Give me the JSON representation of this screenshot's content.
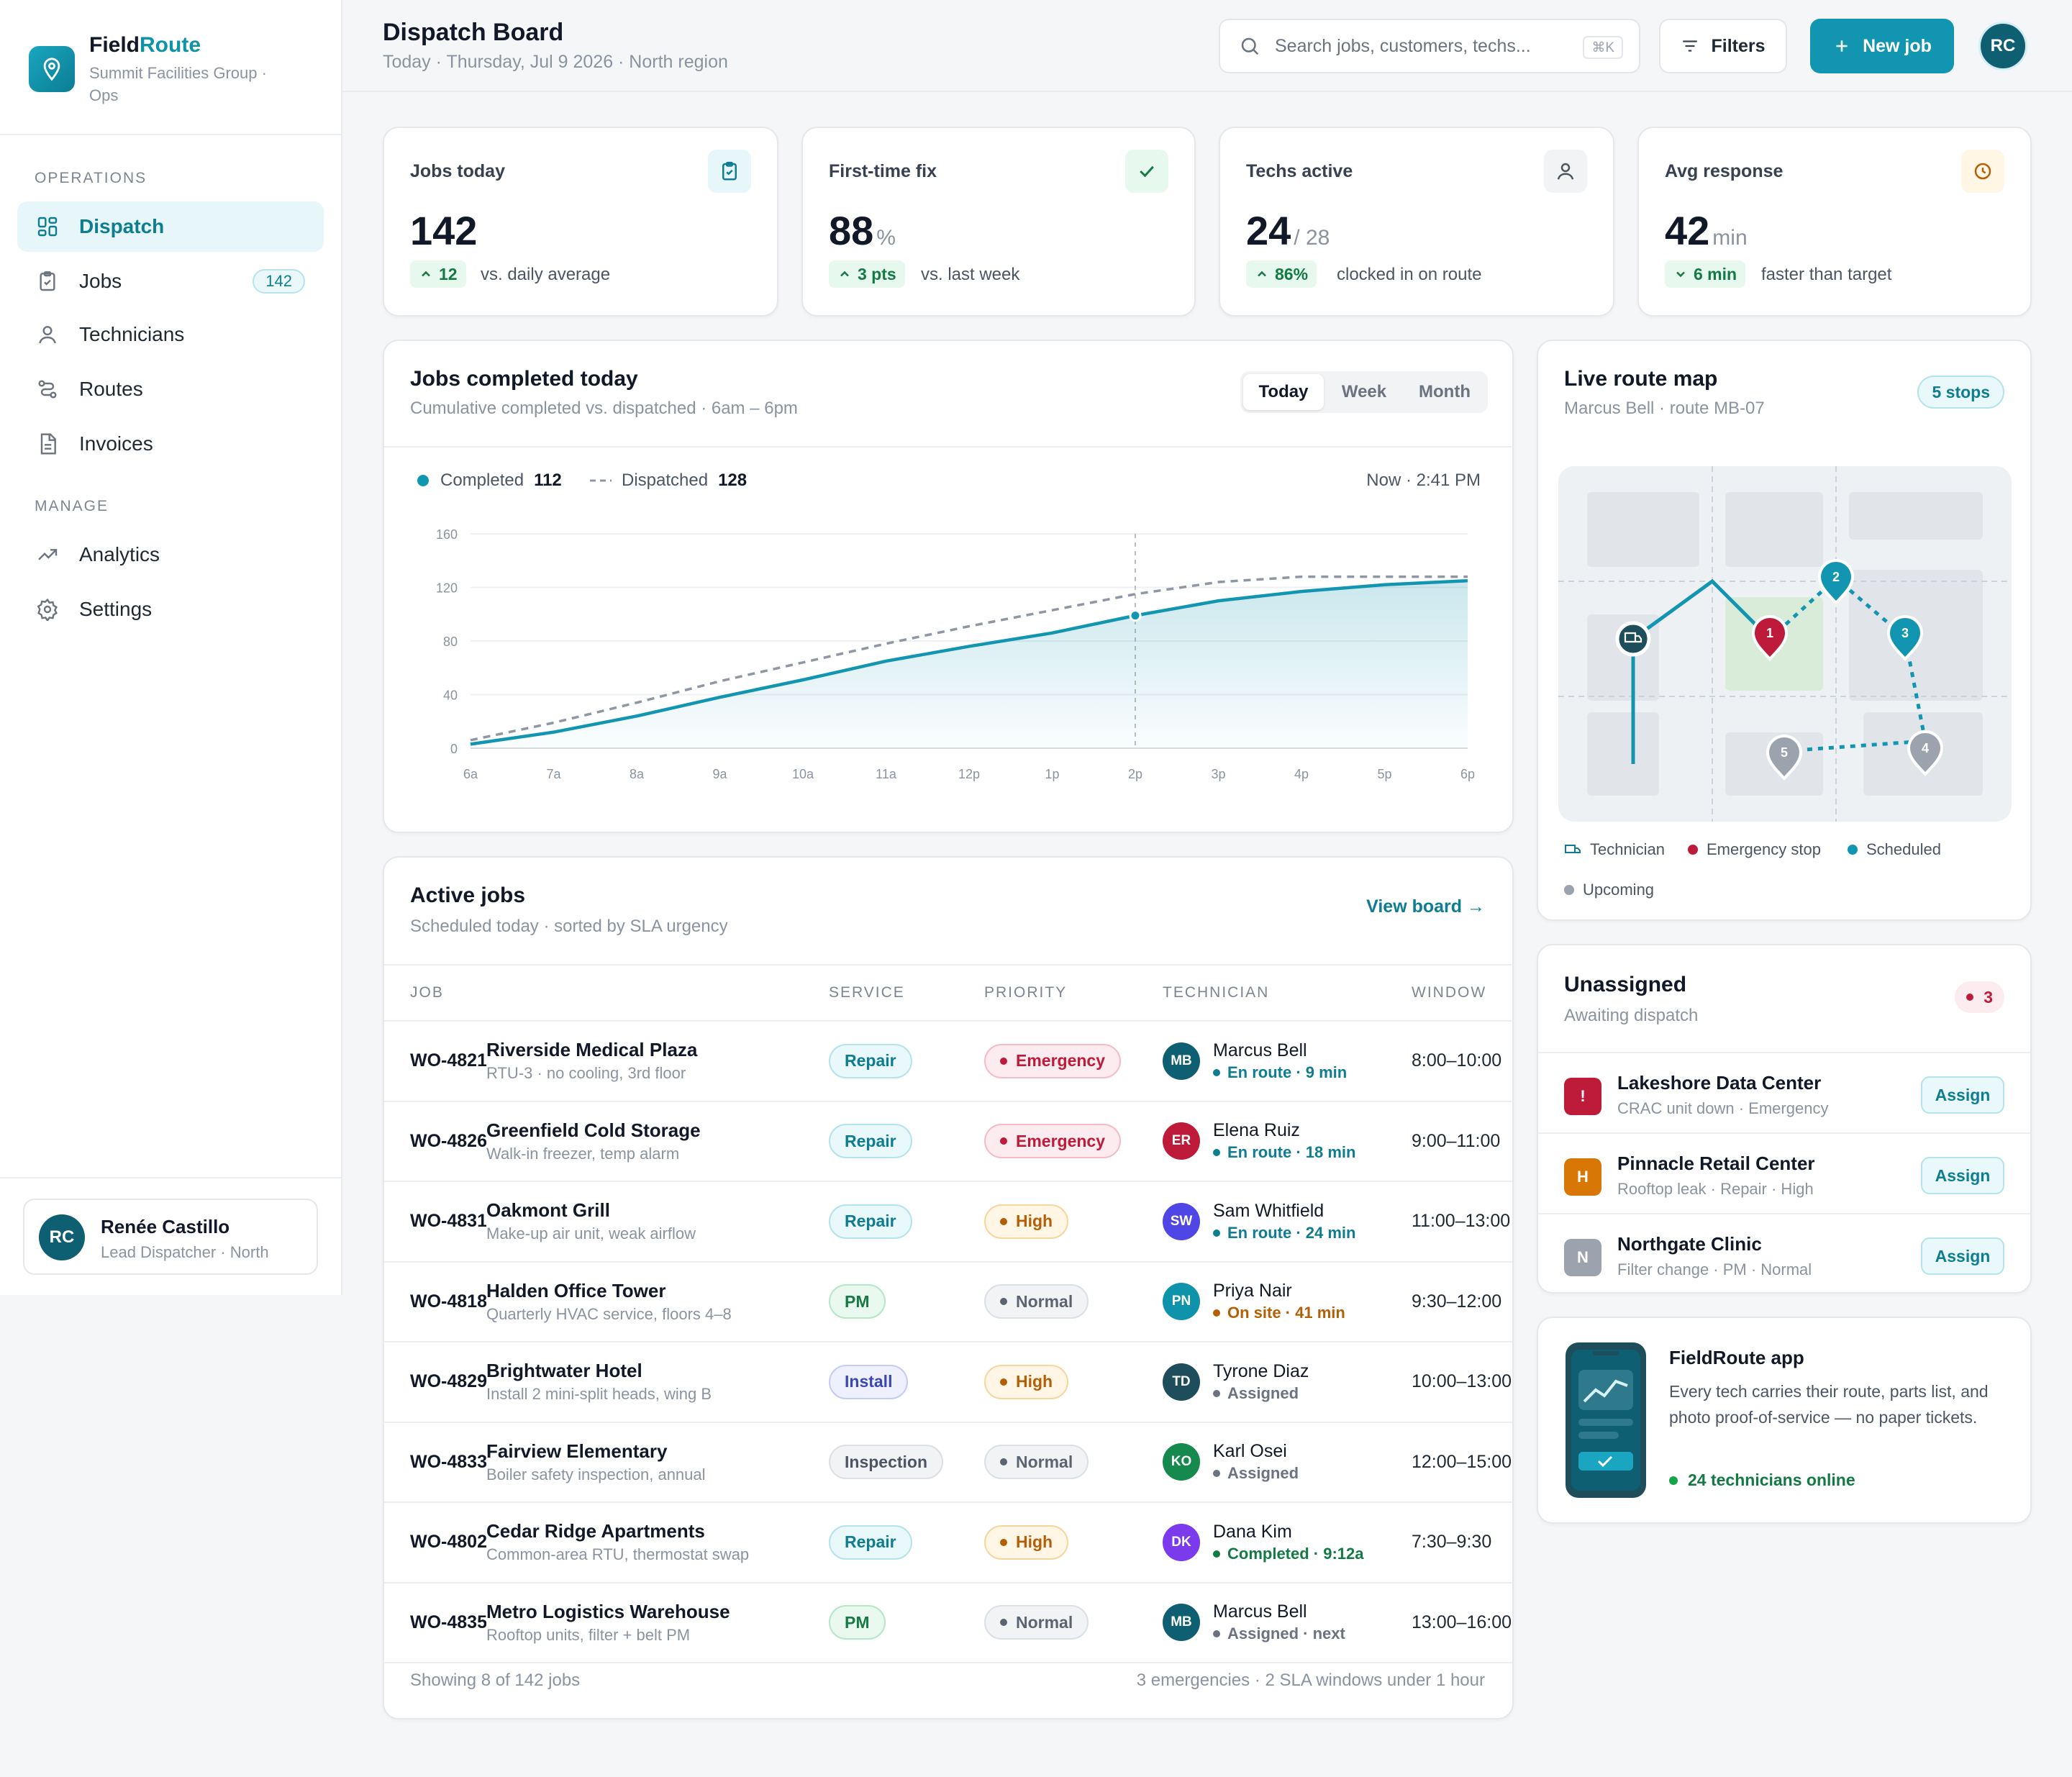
{
  "app": {
    "brand_main": "Field",
    "brand_accent": "Route",
    "org": "Summit Facilities Group · Ops"
  },
  "sidebar": {
    "operations_label": "OPERATIONS",
    "manage_label": "MANAGE",
    "items": [
      {
        "label": "Dispatch",
        "icon": "grid-icon"
      },
      {
        "label": "Jobs",
        "icon": "clipboard-icon",
        "count": "142"
      },
      {
        "label": "Technicians",
        "icon": "user-icon"
      },
      {
        "label": "Routes",
        "icon": "route-icon"
      },
      {
        "label": "Invoices",
        "icon": "file-icon"
      },
      {
        "label": "Analytics",
        "icon": "trend-icon"
      },
      {
        "label": "Settings",
        "icon": "gear-icon"
      }
    ],
    "user": {
      "initials": "RC",
      "name": "Renée Castillo",
      "role": "Lead Dispatcher · North"
    }
  },
  "header": {
    "title": "Dispatch Board",
    "subtitle": "Today · Thursday, Jul 9 2026 · North region",
    "search_placeholder": "Search jobs, customers, techs...",
    "search_shortcut": "⌘K",
    "filters_label": "Filters",
    "new_job_label": "New job",
    "avatar_initials": "RC"
  },
  "kpis": [
    {
      "label": "Jobs today",
      "value": "142",
      "unit": "",
      "delta": "12",
      "delta_dir": "up",
      "delta_text": "vs. daily average",
      "icon": "clipboard-check-icon"
    },
    {
      "label": "First-time fix",
      "value": "88",
      "unit": "%",
      "delta": "3 pts",
      "delta_dir": "up",
      "delta_text": "vs. last week",
      "icon": "check-icon"
    },
    {
      "label": "Techs active",
      "value": "24",
      "unit": "/ 28",
      "delta": "86%",
      "delta_dir": "up",
      "delta_text": "clocked in on route",
      "icon": "user-icon"
    },
    {
      "label": "Avg response",
      "value": "42",
      "unit": "min",
      "delta": "6 min",
      "delta_dir": "down",
      "delta_text": "faster than target",
      "icon": "clock-icon"
    }
  ],
  "chart_card": {
    "title": "Jobs completed today",
    "subtitle": "Cumulative completed vs. dispatched · 6am – 6pm",
    "tabs": [
      "Today",
      "Week",
      "Month"
    ],
    "active_tab": "Today",
    "now_label": "Now · 2:41 PM"
  },
  "chart_data": {
    "type": "line",
    "x": [
      "6a",
      "7a",
      "8a",
      "9a",
      "10a",
      "11a",
      "12p",
      "1p",
      "2p",
      "3p",
      "4p",
      "5p",
      "6p"
    ],
    "series": [
      {
        "name": "Completed",
        "legend_value": "112",
        "values": [
          3,
          12,
          24,
          38,
          51,
          65,
          76,
          86,
          99,
          110,
          117,
          122,
          125
        ],
        "style": "solid-area",
        "color": "#1295b0"
      },
      {
        "name": "Dispatched",
        "legend_value": "128",
        "values": [
          6,
          19,
          34,
          50,
          64,
          78,
          91,
          103,
          115,
          124,
          128,
          128,
          128
        ],
        "style": "dashed",
        "color": "#8e97a3"
      }
    ],
    "yticks": [
      0,
      40,
      80,
      120,
      160
    ],
    "ylim": [
      0,
      160
    ],
    "now_marker_x": "2p",
    "grid": true,
    "legend": "top-left"
  },
  "active_jobs": {
    "title": "Active jobs",
    "subtitle": "Scheduled today · sorted by SLA urgency",
    "view_board_label": "View board →",
    "columns": [
      "JOB",
      "SERVICE",
      "PRIORITY",
      "TECHNICIAN",
      "WINDOW"
    ],
    "rows": [
      {
        "id": "WO-4821",
        "name": "Riverside Medical Plaza",
        "desc": "RTU-3 · no cooling, 3rd floor",
        "service": "Repair",
        "priority": "Emergency",
        "tech_initials": "MB",
        "tech_color": "#0f5f73",
        "tech": "Marcus Bell",
        "status": "En route · 9 min",
        "status_color": "#0e7d92",
        "window": "8:00–10:00"
      },
      {
        "id": "WO-4826",
        "name": "Greenfield Cold Storage",
        "desc": "Walk-in freezer, temp alarm",
        "service": "Repair",
        "priority": "Emergency",
        "tech_initials": "ER",
        "tech_color": "#be1a3a",
        "tech": "Elena Ruiz",
        "status": "En route · 18 min",
        "status_color": "#0e7d92",
        "window": "9:00–11:00"
      },
      {
        "id": "WO-4831",
        "name": "Oakmont Grill",
        "desc": "Make-up air unit, weak airflow",
        "service": "Repair",
        "priority": "High",
        "tech_initials": "SW",
        "tech_color": "#4f46e5",
        "tech": "Sam Whitfield",
        "status": "En route · 24 min",
        "status_color": "#0e7d92",
        "window": "11:00–13:00"
      },
      {
        "id": "WO-4818",
        "name": "Halden Office Tower",
        "desc": "Quarterly HVAC service, floors 4–8",
        "service": "PM",
        "priority": "Normal",
        "tech_initials": "PN",
        "tech_color": "#0e93ab",
        "tech": "Priya Nair",
        "status": "On site · 41 min",
        "status_color": "#b45f06",
        "window": "9:30–12:00"
      },
      {
        "id": "WO-4829",
        "name": "Brightwater Hotel",
        "desc": "Install 2 mini-split heads, wing B",
        "service": "Install",
        "priority": "High",
        "tech_initials": "TD",
        "tech_color": "#1e4e5c",
        "tech": "Tyrone Diaz",
        "status": "Assigned",
        "status_color": "#6b7280",
        "window": "10:00–13:00"
      },
      {
        "id": "WO-4833",
        "name": "Fairview Elementary",
        "desc": "Boiler safety inspection, annual",
        "service": "Inspection",
        "priority": "Normal",
        "tech_initials": "KO",
        "tech_color": "#168a4e",
        "tech": "Karl Osei",
        "status": "Assigned",
        "status_color": "#6b7280",
        "window": "12:00–15:00"
      },
      {
        "id": "WO-4802",
        "name": "Cedar Ridge Apartments",
        "desc": "Common-area RTU, thermostat swap",
        "service": "Repair",
        "priority": "High",
        "tech_initials": "DK",
        "tech_color": "#7c3aed",
        "tech": "Dana Kim",
        "status": "Completed · 9:12a",
        "status_color": "#137a44",
        "window": "7:30–9:30"
      },
      {
        "id": "WO-4835",
        "name": "Metro Logistics Warehouse",
        "desc": "Rooftop units, filter + belt PM",
        "service": "PM",
        "priority": "Normal",
        "tech_initials": "MB",
        "tech_color": "#0f5f73",
        "tech": "Marcus Bell",
        "status": "Assigned · next",
        "status_color": "#6b7280",
        "window": "13:00–16:00"
      }
    ],
    "footer_left": "Showing 8 of 142 jobs",
    "footer_right": "3 emergencies · 2 SLA windows under 1 hour"
  },
  "route_map": {
    "title": "Live route map",
    "subtitle": "Marcus Bell · route MB-07",
    "stops_badge": "5 stops",
    "stop_labels": [
      "1",
      "2",
      "3",
      "4",
      "5"
    ],
    "legend": [
      "Technician",
      "Emergency stop",
      "Scheduled",
      "Upcoming"
    ]
  },
  "unassigned": {
    "title": "Unassigned",
    "subtitle": "Awaiting dispatch",
    "count": "3",
    "items": [
      {
        "icon_text": "!",
        "color": "#be1a3a",
        "name": "Lakeshore Data Center",
        "desc": "CRAC unit down · Emergency"
      },
      {
        "icon_text": "H",
        "color": "#d97706",
        "name": "Pinnacle Retail Center",
        "desc": "Rooftop leak · Repair · High"
      },
      {
        "icon_text": "N",
        "color": "#9ca3af",
        "name": "Northgate Clinic",
        "desc": "Filter change · PM · Normal"
      }
    ],
    "assign_label": "Assign"
  },
  "promo": {
    "title": "FieldRoute app",
    "body": "Every tech carries their route, parts list, and photo proof-of-service — no paper tickets.",
    "status": "24 technicians online"
  }
}
